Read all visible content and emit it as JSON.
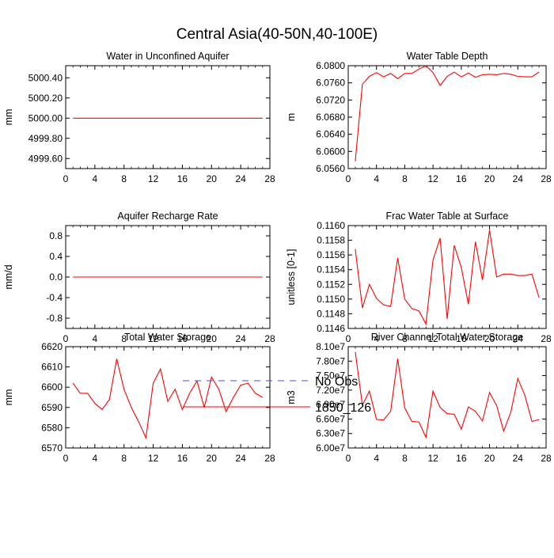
{
  "page": {
    "title": "Central Asia(40-50N,40-100E)"
  },
  "legend": {
    "items": [
      {
        "label": "No Obs",
        "color": "#4b4bd6",
        "dashed": true
      },
      {
        "label": "1850_126",
        "color": "#ff0000",
        "dashed": false
      }
    ]
  },
  "chart_data": [
    {
      "type": "line",
      "title": "Water in Unconfined Aquifer",
      "ylabel": "mm",
      "xlim": [
        0,
        28
      ],
      "xticks": [
        0,
        4,
        8,
        12,
        16,
        20,
        24,
        28
      ],
      "ylim": [
        4999.5,
        5000.52
      ],
      "yticks": [
        4999.6,
        4999.8,
        5000.0,
        5000.2,
        5000.4
      ],
      "ytick_labels": [
        "4999.60",
        "4999.80",
        "5000.00",
        "5000.20",
        "5000.40"
      ],
      "series": [
        {
          "name": "1850_126",
          "color": "#ff0000",
          "x": [
            1,
            2,
            3,
            4,
            5,
            6,
            7,
            8,
            9,
            10,
            11,
            12,
            13,
            14,
            15,
            16,
            17,
            18,
            19,
            20,
            21,
            22,
            23,
            24,
            25,
            26,
            27
          ],
          "values": [
            5000,
            5000,
            5000,
            5000,
            5000,
            5000,
            5000,
            5000,
            5000,
            5000,
            5000,
            5000,
            5000,
            5000,
            5000,
            5000,
            5000,
            5000,
            5000,
            5000,
            5000,
            5000,
            5000,
            5000,
            5000,
            5000,
            5000
          ]
        }
      ]
    },
    {
      "type": "line",
      "title": "Water Table Depth",
      "ylabel": "m",
      "xlim": [
        0,
        28
      ],
      "xticks": [
        0,
        4,
        8,
        12,
        16,
        20,
        24,
        28
      ],
      "ylim": [
        6.056,
        6.08
      ],
      "yticks": [
        6.056,
        6.06,
        6.064,
        6.068,
        6.072,
        6.076,
        6.08
      ],
      "ytick_labels": [
        "6.0560",
        "6.0600",
        "6.0640",
        "6.0680",
        "6.0720",
        "6.0760",
        "6.0800"
      ],
      "series": [
        {
          "name": "1850_126",
          "color": "#ff0000",
          "x": [
            1,
            2,
            3,
            4,
            5,
            6,
            7,
            8,
            9,
            10,
            11,
            12,
            13,
            14,
            15,
            16,
            17,
            18,
            19,
            20,
            21,
            22,
            23,
            24,
            25,
            26,
            27
          ],
          "values": [
            6.0577,
            6.0757,
            6.0775,
            6.0784,
            6.0774,
            6.0782,
            6.077,
            6.0782,
            6.0782,
            6.0792,
            6.08,
            6.0784,
            6.0754,
            6.0775,
            6.0785,
            6.0774,
            6.0783,
            6.0773,
            6.0779,
            6.078,
            6.0779,
            6.0782,
            6.078,
            6.0775,
            6.0774,
            6.0774,
            6.0785
          ]
        }
      ]
    },
    {
      "type": "line",
      "title": "Aquifer Recharge Rate",
      "ylabel": "mm/d",
      "xlim": [
        0,
        28
      ],
      "xticks": [
        0,
        4,
        8,
        12,
        16,
        20,
        24,
        28
      ],
      "ylim": [
        -1.0,
        1.0
      ],
      "yticks": [
        -0.8,
        -0.4,
        0.0,
        0.4,
        0.8
      ],
      "ytick_labels": [
        "-0.8",
        "-0.4",
        "0.0",
        "0.4",
        "0.8"
      ],
      "series": [
        {
          "name": "1850_126",
          "color": "#ff0000",
          "x": [
            1,
            2,
            3,
            4,
            5,
            6,
            7,
            8,
            9,
            10,
            11,
            12,
            13,
            14,
            15,
            16,
            17,
            18,
            19,
            20,
            21,
            22,
            23,
            24,
            25,
            26,
            27
          ],
          "values": [
            0,
            0,
            0,
            0,
            0,
            0,
            0,
            0,
            0,
            0,
            0,
            0,
            0,
            0,
            0,
            0,
            0,
            0,
            0,
            0,
            0,
            0,
            0,
            0,
            0,
            0,
            0
          ]
        }
      ]
    },
    {
      "type": "line",
      "title": "Frac Water Table at Surface",
      "ylabel": "unitless [0-1]",
      "xlim": [
        0,
        28
      ],
      "xticks": [
        0,
        4,
        8,
        12,
        16,
        20,
        24,
        28
      ],
      "ylim": [
        0.1146,
        0.116
      ],
      "yticks": [
        0.1146,
        0.1148,
        0.115,
        0.1152,
        0.1154,
        0.1156,
        0.1158,
        0.116
      ],
      "ytick_labels": [
        "0.1146",
        "0.1148",
        "0.1150",
        "0.1152",
        "0.1154",
        "0.1156",
        "0.1158",
        "0.1160"
      ],
      "series": [
        {
          "name": "1850_126",
          "color": "#ff0000",
          "x": [
            1,
            2,
            3,
            4,
            5,
            6,
            7,
            8,
            9,
            10,
            11,
            12,
            13,
            14,
            15,
            16,
            17,
            18,
            19,
            20,
            21,
            22,
            23,
            24,
            25,
            26,
            27
          ],
          "values": [
            0.11568,
            0.11488,
            0.1152,
            0.11501,
            0.11492,
            0.1149,
            0.11556,
            0.115,
            0.11487,
            0.11484,
            0.11466,
            0.11553,
            0.11583,
            0.11473,
            0.11573,
            0.11543,
            0.11493,
            0.11578,
            0.11526,
            0.11594,
            0.1153,
            0.11534,
            0.11534,
            0.11532,
            0.11532,
            0.11534,
            0.11502
          ]
        }
      ]
    },
    {
      "type": "line",
      "title": "Total Water Storage",
      "ylabel": "mm",
      "xlim": [
        0,
        28
      ],
      "xticks": [
        0,
        4,
        8,
        12,
        16,
        20,
        24,
        28
      ],
      "ylim": [
        6570,
        6620
      ],
      "yticks": [
        6570,
        6580,
        6590,
        6600,
        6610,
        6620
      ],
      "ytick_labels": [
        "6570",
        "6580",
        "6590",
        "6600",
        "6610",
        "6620"
      ],
      "series": [
        {
          "name": "1850_126",
          "color": "#ff0000",
          "x": [
            1,
            2,
            3,
            4,
            5,
            6,
            7,
            8,
            9,
            10,
            11,
            12,
            13,
            14,
            15,
            16,
            17,
            18,
            19,
            20,
            21,
            22,
            23,
            24,
            25,
            26,
            27
          ],
          "values": [
            6602,
            6597,
            6597,
            6592,
            6589,
            6594,
            6614,
            6599,
            6590,
            6583,
            6575,
            6602,
            6609,
            6593,
            6599,
            6589,
            6597,
            6603,
            6590,
            6605,
            6599,
            6588,
            6595,
            6601,
            6602,
            6597,
            6595
          ]
        }
      ]
    },
    {
      "type": "line",
      "title": "River Channel Total Water Storage",
      "ylabel": "m3",
      "xlim": [
        0,
        28
      ],
      "xticks": [
        0,
        4,
        8,
        12,
        16,
        20,
        24,
        28
      ],
      "ylim": [
        60000000,
        81000000
      ],
      "yticks": [
        60000000,
        63000000,
        66000000,
        69000000,
        72000000,
        75000000,
        78000000,
        81000000
      ],
      "ytick_labels": [
        "6.00e7",
        "6.30e7",
        "6.60e7",
        "6.90e7",
        "7.20e7",
        "7.50e7",
        "7.80e7",
        "8.10e7"
      ],
      "series": [
        {
          "name": "1850_126",
          "color": "#ff0000",
          "x": [
            1,
            2,
            3,
            4,
            5,
            6,
            7,
            8,
            9,
            10,
            11,
            12,
            13,
            14,
            15,
            16,
            17,
            18,
            19,
            20,
            21,
            22,
            23,
            24,
            25,
            26,
            27
          ],
          "values": [
            79900000,
            68900000,
            71800000,
            65900000,
            65800000,
            67600000,
            78500000,
            68300000,
            65500000,
            65400000,
            62200000,
            71800000,
            68400000,
            67100000,
            67000000,
            63900000,
            68500000,
            67600000,
            65600000,
            71500000,
            68800000,
            63500000,
            67400000,
            74400000,
            70900000,
            65500000,
            65900000
          ]
        }
      ]
    }
  ]
}
